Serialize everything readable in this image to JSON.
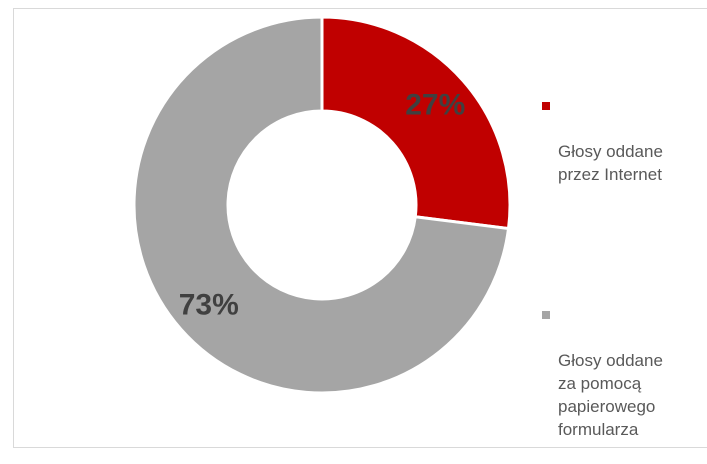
{
  "chart_data": {
    "type": "pie",
    "donut": true,
    "categories": [
      "Głosy oddane przez Internet",
      "Głosy oddane za pomocą papierowego formularza"
    ],
    "values": [
      27,
      73
    ],
    "data_labels": [
      "27%",
      "73%"
    ],
    "colors": [
      "#c00000",
      "#a5a5a5"
    ],
    "label_color": "#404040",
    "legend_placement": "right",
    "legend": [
      {
        "label": "Głosy oddane\nprzez Internet",
        "color": "#c00000"
      },
      {
        "label": "Głosy oddane\nza pomocą\npapierowego\nformularza",
        "color": "#a5a5a5"
      }
    ]
  }
}
